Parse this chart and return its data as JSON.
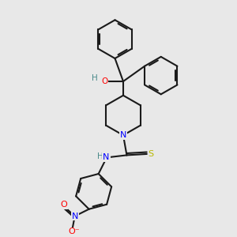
{
  "background_color": "#e8e8e8",
  "bond_color": "#1a1a1a",
  "bond_width": 1.5,
  "atom_colors": {
    "O": "#ff0000",
    "N": "#0000ff",
    "S": "#b8b800",
    "H": "#4a8a8a",
    "C": "#1a1a1a"
  },
  "figsize": [
    3.0,
    3.0
  ],
  "dpi": 100
}
